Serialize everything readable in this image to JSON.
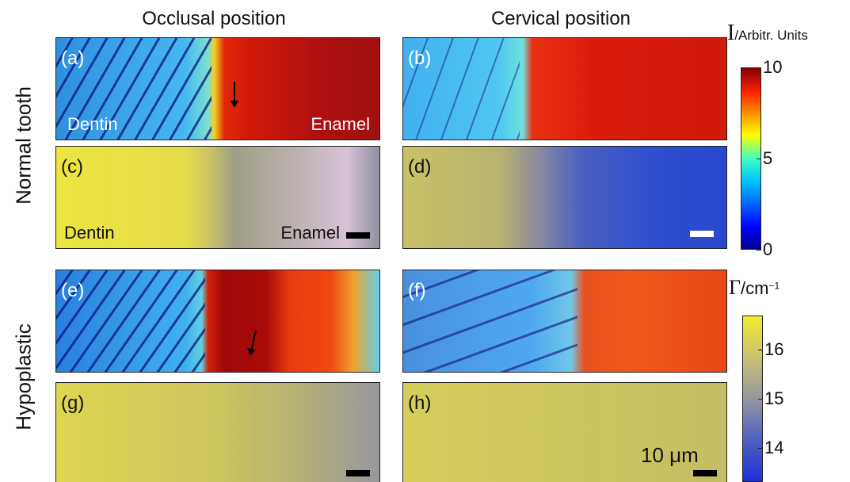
{
  "columns": [
    "Occlusal position",
    "Cervical position"
  ],
  "rows": [
    "Normal tooth",
    "Hypoplastic"
  ],
  "panels": [
    {
      "label": "(a)",
      "left_text": "Dentin",
      "right_text": "Enamel"
    },
    {
      "label": "(b)"
    },
    {
      "label": "(c)",
      "left_text": "Dentin",
      "right_text": "Enamel"
    },
    {
      "label": "(d)"
    },
    {
      "label": "(e)"
    },
    {
      "label": "(f)"
    },
    {
      "label": "(g)"
    },
    {
      "label": "(h)",
      "scale_label": "10 μm"
    }
  ],
  "colorbars": [
    {
      "symbol": "I",
      "unit": "/Arbitr. Units",
      "range": [
        0,
        10
      ],
      "ticks": [
        10,
        5,
        0
      ]
    },
    {
      "symbol": "Γ",
      "unit": "/cm",
      "exponent": "−1",
      "range": [
        13.3,
        16.7
      ],
      "ticks": [
        16,
        15,
        14
      ]
    }
  ]
}
